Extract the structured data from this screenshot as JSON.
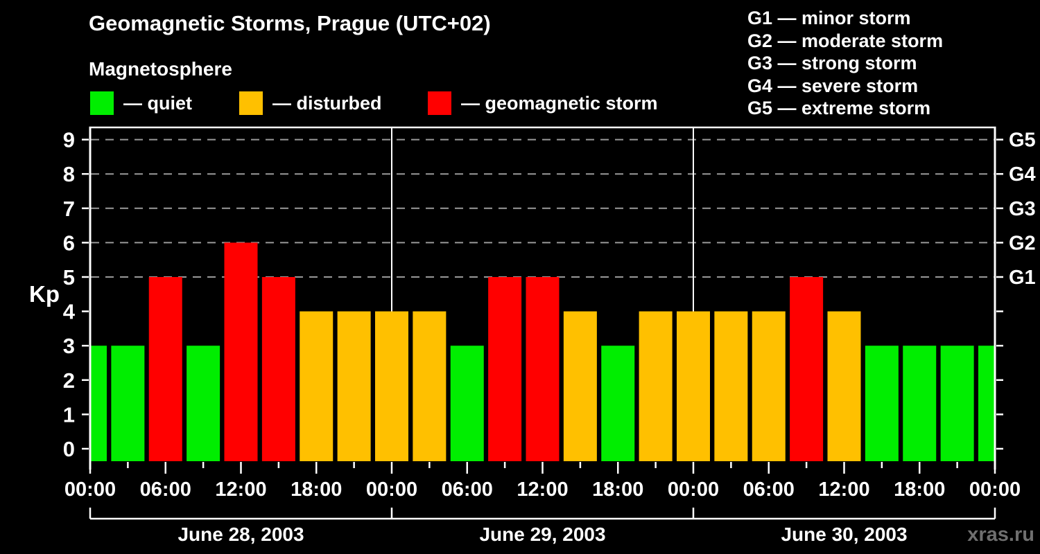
{
  "title": "Geomagnetic Storms, Prague (UTC+02)",
  "subtitle": "Magnetosphere",
  "legend": {
    "items": [
      {
        "id": "quiet",
        "label": "— quiet",
        "color": "#00ee00"
      },
      {
        "id": "disturbed",
        "label": "— disturbed",
        "color": "#ffc000"
      },
      {
        "id": "storm",
        "label": "— geomagnetic storm",
        "color": "#ff0000"
      }
    ]
  },
  "storm_scale": [
    "G1 — minor storm",
    "G2 — moderate storm",
    "G3 — strong storm",
    "G4 — severe storm",
    "G5 — extreme storm"
  ],
  "watermark": "xras.ru",
  "chart_data": {
    "type": "bar",
    "title": "Geomagnetic Storms, Prague (UTC+02)",
    "subtitle": "Magnetosphere",
    "ylabel": "Kp",
    "ylim": [
      0,
      9
    ],
    "yticks": [
      0,
      1,
      2,
      3,
      4,
      5,
      6,
      7,
      8,
      9
    ],
    "dashed_gridlines_at_kp": [
      5,
      6,
      7,
      8,
      9
    ],
    "right_axis": [
      {
        "label": "G1",
        "kp": 5
      },
      {
        "label": "G2",
        "kp": 6
      },
      {
        "label": "G3",
        "kp": 7
      },
      {
        "label": "G4",
        "kp": 8
      },
      {
        "label": "G5",
        "kp": 9
      }
    ],
    "interval_hours": 3,
    "x_tick_labels": [
      "00:00",
      "06:00",
      "12:00",
      "18:00",
      "00:00",
      "06:00",
      "12:00",
      "18:00",
      "00:00",
      "06:00",
      "12:00",
      "18:00",
      "00:00"
    ],
    "days": [
      {
        "date": "June 28, 2003",
        "kp_values": [
          3,
          3,
          5,
          3,
          6,
          5,
          4,
          4
        ]
      },
      {
        "date": "June 29, 2003",
        "kp_values": [
          4,
          4,
          3,
          5,
          5,
          4,
          3,
          4
        ]
      },
      {
        "date": "June 30, 2003",
        "kp_values": [
          4,
          4,
          4,
          5,
          4,
          3,
          3,
          3
        ]
      }
    ],
    "next_day_first_value": 3,
    "thresholds": {
      "quiet_max": 3,
      "storm_min": 5
    },
    "colors": {
      "quiet": "#00ee00",
      "disturbed": "#ffc000",
      "storm": "#ff0000",
      "grid": "#9a9a9a",
      "axis": "#ffffff",
      "background": "#000000"
    },
    "legend_position": "top-left",
    "grid": "dashed horizontal at storm levels only"
  }
}
